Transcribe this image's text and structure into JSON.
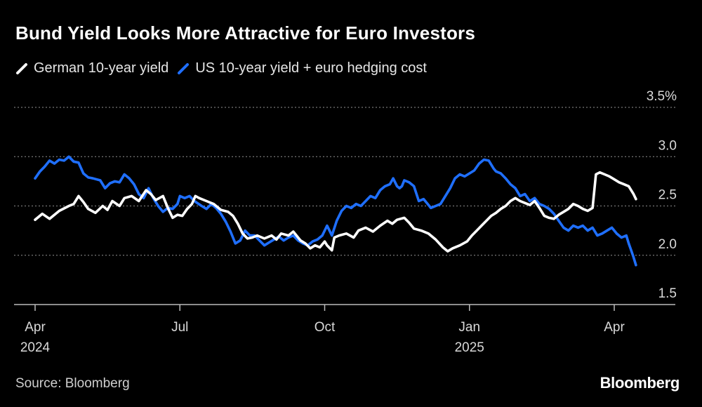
{
  "title": "Bund Yield Looks More Attractive for Euro Investors",
  "source": "Source: Bloomberg",
  "brand": "Bloomberg",
  "colors": {
    "german": "#ffffff",
    "us": "#1f6fff",
    "grid": "#777777",
    "axis": "#bbbbbb"
  },
  "chart_data": {
    "type": "line",
    "title": "Bund Yield Looks More Attractive for Euro Investors",
    "xlabel": "",
    "ylabel": "",
    "ylim": [
      1.5,
      3.5
    ],
    "y_ticks": [
      {
        "value": 1.5,
        "label": "1.5"
      },
      {
        "value": 2.0,
        "label": "2.0"
      },
      {
        "value": 2.5,
        "label": "2.5"
      },
      {
        "value": 3.0,
        "label": "3.0"
      },
      {
        "value": 3.5,
        "label": "3.5%"
      }
    ],
    "x_range": [
      0,
      12.6
    ],
    "x_ticks": [
      {
        "month": 0,
        "label": "Apr",
        "sublabel": "2024"
      },
      {
        "month": 3,
        "label": "Jul",
        "sublabel": ""
      },
      {
        "month": 6,
        "label": "Oct",
        "sublabel": ""
      },
      {
        "month": 9,
        "label": "Jan",
        "sublabel": "2025"
      },
      {
        "month": 12,
        "label": "Apr",
        "sublabel": ""
      }
    ],
    "series": [
      {
        "name": "German 10-year yield",
        "key": "german",
        "points": [
          [
            0.0,
            2.36
          ],
          [
            0.15,
            2.42
          ],
          [
            0.3,
            2.37
          ],
          [
            0.5,
            2.45
          ],
          [
            0.7,
            2.5
          ],
          [
            0.8,
            2.52
          ],
          [
            0.9,
            2.6
          ],
          [
            1.0,
            2.54
          ],
          [
            1.1,
            2.47
          ],
          [
            1.25,
            2.43
          ],
          [
            1.4,
            2.5
          ],
          [
            1.5,
            2.46
          ],
          [
            1.6,
            2.55
          ],
          [
            1.75,
            2.5
          ],
          [
            1.85,
            2.58
          ],
          [
            2.0,
            2.6
          ],
          [
            2.15,
            2.55
          ],
          [
            2.3,
            2.66
          ],
          [
            2.4,
            2.62
          ],
          [
            2.5,
            2.56
          ],
          [
            2.65,
            2.6
          ],
          [
            2.75,
            2.48
          ],
          [
            2.85,
            2.38
          ],
          [
            2.95,
            2.41
          ],
          [
            3.05,
            2.4
          ],
          [
            3.15,
            2.47
          ],
          [
            3.25,
            2.52
          ],
          [
            3.32,
            2.6
          ],
          [
            3.4,
            2.58
          ],
          [
            3.55,
            2.55
          ],
          [
            3.7,
            2.52
          ],
          [
            3.85,
            2.46
          ],
          [
            4.0,
            2.44
          ],
          [
            4.1,
            2.4
          ],
          [
            4.2,
            2.32
          ],
          [
            4.3,
            2.22
          ],
          [
            4.4,
            2.17
          ],
          [
            4.5,
            2.18
          ],
          [
            4.6,
            2.2
          ],
          [
            4.75,
            2.17
          ],
          [
            4.9,
            2.2
          ],
          [
            5.0,
            2.16
          ],
          [
            5.1,
            2.22
          ],
          [
            5.25,
            2.2
          ],
          [
            5.35,
            2.24
          ],
          [
            5.5,
            2.15
          ],
          [
            5.6,
            2.12
          ],
          [
            5.7,
            2.07
          ],
          [
            5.8,
            2.1
          ],
          [
            5.9,
            2.08
          ],
          [
            6.0,
            2.14
          ],
          [
            6.05,
            2.1
          ],
          [
            6.15,
            2.05
          ],
          [
            6.2,
            2.18
          ],
          [
            6.3,
            2.2
          ],
          [
            6.45,
            2.22
          ],
          [
            6.6,
            2.18
          ],
          [
            6.7,
            2.25
          ],
          [
            6.85,
            2.28
          ],
          [
            7.0,
            2.24
          ],
          [
            7.15,
            2.3
          ],
          [
            7.3,
            2.35
          ],
          [
            7.4,
            2.32
          ],
          [
            7.5,
            2.36
          ],
          [
            7.65,
            2.38
          ],
          [
            7.75,
            2.33
          ],
          [
            7.85,
            2.27
          ],
          [
            8.0,
            2.25
          ],
          [
            8.15,
            2.22
          ],
          [
            8.3,
            2.16
          ],
          [
            8.45,
            2.08
          ],
          [
            8.55,
            2.04
          ],
          [
            8.65,
            2.07
          ],
          [
            8.8,
            2.1
          ],
          [
            8.95,
            2.14
          ],
          [
            9.05,
            2.2
          ],
          [
            9.15,
            2.25
          ],
          [
            9.25,
            2.3
          ],
          [
            9.35,
            2.35
          ],
          [
            9.45,
            2.4
          ],
          [
            9.55,
            2.43
          ],
          [
            9.65,
            2.47
          ],
          [
            9.75,
            2.5
          ],
          [
            9.85,
            2.55
          ],
          [
            9.95,
            2.58
          ],
          [
            10.05,
            2.55
          ],
          [
            10.15,
            2.53
          ],
          [
            10.25,
            2.51
          ],
          [
            10.35,
            2.55
          ],
          [
            10.45,
            2.48
          ],
          [
            10.55,
            2.4
          ],
          [
            10.65,
            2.38
          ],
          [
            10.75,
            2.37
          ],
          [
            10.85,
            2.41
          ],
          [
            10.95,
            2.44
          ],
          [
            11.05,
            2.47
          ],
          [
            11.15,
            2.52
          ],
          [
            11.25,
            2.5
          ],
          [
            11.35,
            2.47
          ],
          [
            11.45,
            2.45
          ],
          [
            11.55,
            2.48
          ],
          [
            11.62,
            2.82
          ],
          [
            11.7,
            2.84
          ],
          [
            11.8,
            2.82
          ],
          [
            11.9,
            2.8
          ],
          [
            12.0,
            2.77
          ],
          [
            12.1,
            2.74
          ],
          [
            12.2,
            2.72
          ],
          [
            12.3,
            2.7
          ],
          [
            12.4,
            2.62
          ],
          [
            12.45,
            2.57
          ]
        ]
      },
      {
        "name": "US 10-year yield + euro hedging cost",
        "key": "us",
        "points": [
          [
            0.0,
            2.78
          ],
          [
            0.1,
            2.85
          ],
          [
            0.2,
            2.9
          ],
          [
            0.3,
            2.96
          ],
          [
            0.4,
            2.93
          ],
          [
            0.5,
            2.97
          ],
          [
            0.6,
            2.96
          ],
          [
            0.7,
            3.0
          ],
          [
            0.8,
            2.95
          ],
          [
            0.9,
            2.94
          ],
          [
            1.0,
            2.83
          ],
          [
            1.1,
            2.79
          ],
          [
            1.2,
            2.78
          ],
          [
            1.35,
            2.76
          ],
          [
            1.45,
            2.68
          ],
          [
            1.55,
            2.73
          ],
          [
            1.65,
            2.75
          ],
          [
            1.75,
            2.74
          ],
          [
            1.85,
            2.82
          ],
          [
            1.95,
            2.78
          ],
          [
            2.05,
            2.72
          ],
          [
            2.15,
            2.62
          ],
          [
            2.25,
            2.58
          ],
          [
            2.35,
            2.68
          ],
          [
            2.45,
            2.58
          ],
          [
            2.55,
            2.5
          ],
          [
            2.65,
            2.44
          ],
          [
            2.75,
            2.48
          ],
          [
            2.85,
            2.47
          ],
          [
            2.95,
            2.52
          ],
          [
            3.0,
            2.6
          ],
          [
            3.1,
            2.58
          ],
          [
            3.2,
            2.6
          ],
          [
            3.3,
            2.55
          ],
          [
            3.45,
            2.5
          ],
          [
            3.55,
            2.47
          ],
          [
            3.65,
            2.52
          ],
          [
            3.75,
            2.48
          ],
          [
            3.85,
            2.42
          ],
          [
            3.95,
            2.34
          ],
          [
            4.05,
            2.24
          ],
          [
            4.15,
            2.12
          ],
          [
            4.25,
            2.15
          ],
          [
            4.35,
            2.25
          ],
          [
            4.45,
            2.2
          ],
          [
            4.55,
            2.2
          ],
          [
            4.65,
            2.15
          ],
          [
            4.75,
            2.1
          ],
          [
            4.85,
            2.13
          ],
          [
            4.95,
            2.16
          ],
          [
            5.05,
            2.19
          ],
          [
            5.15,
            2.15
          ],
          [
            5.25,
            2.18
          ],
          [
            5.35,
            2.2
          ],
          [
            5.45,
            2.15
          ],
          [
            5.55,
            2.12
          ],
          [
            5.65,
            2.1
          ],
          [
            5.75,
            2.14
          ],
          [
            5.85,
            2.16
          ],
          [
            5.95,
            2.2
          ],
          [
            6.05,
            2.3
          ],
          [
            6.15,
            2.2
          ],
          [
            6.25,
            2.35
          ],
          [
            6.35,
            2.45
          ],
          [
            6.45,
            2.5
          ],
          [
            6.55,
            2.48
          ],
          [
            6.65,
            2.52
          ],
          [
            6.75,
            2.5
          ],
          [
            6.85,
            2.55
          ],
          [
            6.95,
            2.6
          ],
          [
            7.05,
            2.58
          ],
          [
            7.15,
            2.66
          ],
          [
            7.25,
            2.7
          ],
          [
            7.35,
            2.72
          ],
          [
            7.42,
            2.78
          ],
          [
            7.5,
            2.7
          ],
          [
            7.55,
            2.68
          ],
          [
            7.6,
            2.7
          ],
          [
            7.65,
            2.76
          ],
          [
            7.75,
            2.74
          ],
          [
            7.85,
            2.7
          ],
          [
            7.95,
            2.55
          ],
          [
            8.05,
            2.57
          ],
          [
            8.1,
            2.54
          ],
          [
            8.2,
            2.48
          ],
          [
            8.3,
            2.5
          ],
          [
            8.4,
            2.52
          ],
          [
            8.5,
            2.6
          ],
          [
            8.6,
            2.68
          ],
          [
            8.7,
            2.78
          ],
          [
            8.8,
            2.82
          ],
          [
            8.9,
            2.8
          ],
          [
            9.0,
            2.83
          ],
          [
            9.1,
            2.86
          ],
          [
            9.2,
            2.93
          ],
          [
            9.3,
            2.97
          ],
          [
            9.4,
            2.96
          ],
          [
            9.5,
            2.88
          ],
          [
            9.55,
            2.85
          ],
          [
            9.65,
            2.83
          ],
          [
            9.75,
            2.78
          ],
          [
            9.85,
            2.72
          ],
          [
            9.95,
            2.68
          ],
          [
            10.05,
            2.6
          ],
          [
            10.15,
            2.62
          ],
          [
            10.25,
            2.55
          ],
          [
            10.35,
            2.58
          ],
          [
            10.45,
            2.52
          ],
          [
            10.55,
            2.5
          ],
          [
            10.65,
            2.47
          ],
          [
            10.75,
            2.42
          ],
          [
            10.85,
            2.35
          ],
          [
            10.95,
            2.28
          ],
          [
            11.05,
            2.25
          ],
          [
            11.15,
            2.3
          ],
          [
            11.25,
            2.28
          ],
          [
            11.35,
            2.3
          ],
          [
            11.45,
            2.25
          ],
          [
            11.55,
            2.28
          ],
          [
            11.65,
            2.2
          ],
          [
            11.75,
            2.22
          ],
          [
            11.85,
            2.25
          ],
          [
            11.95,
            2.28
          ],
          [
            12.05,
            2.22
          ],
          [
            12.15,
            2.18
          ],
          [
            12.25,
            2.2
          ],
          [
            12.3,
            2.12
          ],
          [
            12.35,
            2.05
          ],
          [
            12.4,
            1.98
          ],
          [
            12.45,
            1.9
          ]
        ]
      }
    ]
  }
}
